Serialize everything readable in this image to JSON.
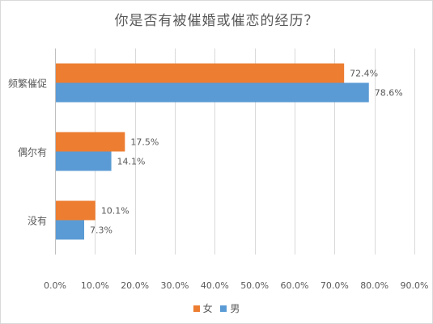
{
  "chart_data": {
    "type": "bar",
    "orientation": "horizontal",
    "title": "你是否有被催婚或催恋的经历？",
    "categories": [
      "频繁催促",
      "偶尔有",
      "没有"
    ],
    "series": [
      {
        "name": "女",
        "values": [
          72.4,
          17.5,
          10.1
        ],
        "labels": [
          "72.4%",
          "17.5%",
          "10.1%"
        ],
        "color": "#ed7d31"
      },
      {
        "name": "男",
        "values": [
          78.6,
          14.1,
          7.3
        ],
        "labels": [
          "78.6%",
          "14.1%",
          "7.3%"
        ],
        "color": "#5b9bd5"
      }
    ],
    "xlim": [
      0,
      90
    ],
    "xticks": [
      0,
      10,
      20,
      30,
      40,
      50,
      60,
      70,
      80,
      90
    ],
    "xtick_labels": [
      "0.0%",
      "10.0%",
      "20.0%",
      "30.0%",
      "40.0%",
      "50.0%",
      "60.0%",
      "70.0%",
      "80.0%",
      "90.0%"
    ],
    "grid": "vertical",
    "legend_position": "bottom"
  }
}
